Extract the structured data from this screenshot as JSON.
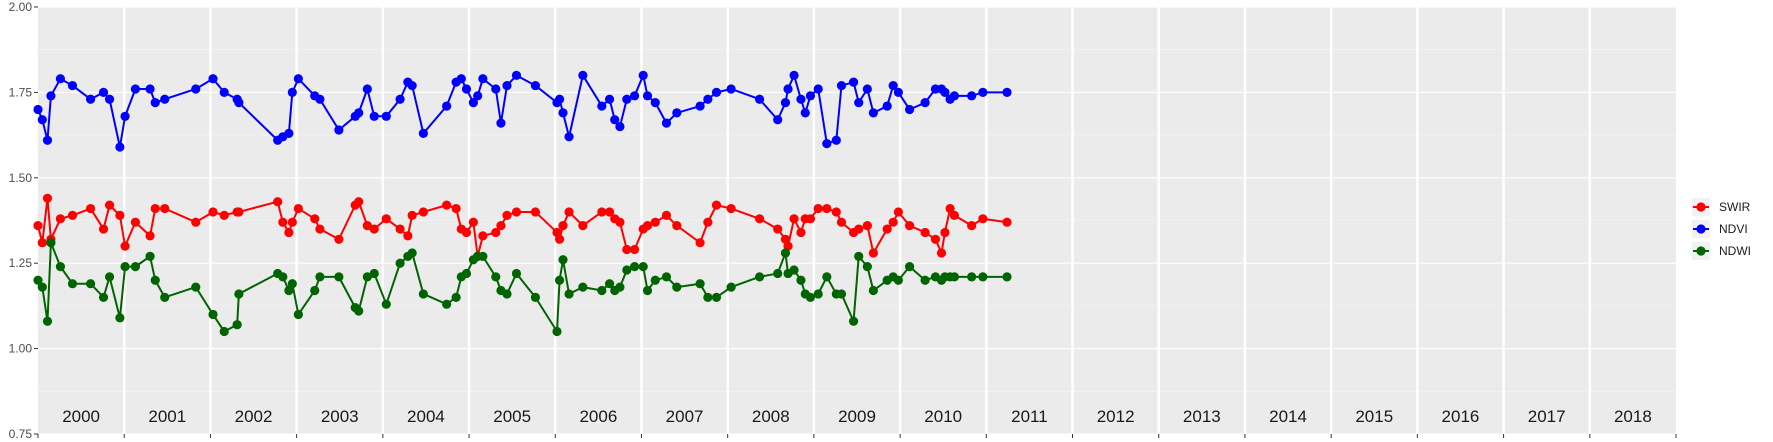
{
  "chart_data": {
    "type": "line",
    "title": "",
    "xlabel": "",
    "ylabel": "",
    "xlim": [
      2000.0,
      2019.0
    ],
    "ylim": [
      0.75,
      2.0
    ],
    "y_ticks": [
      0.75,
      1.0,
      1.25,
      1.5,
      1.75,
      2.0
    ],
    "y_tick_labels": [
      "0.75",
      "1.00",
      "1.25",
      "1.50",
      "1.75",
      "2.00"
    ],
    "year_labels": [
      "2000",
      "2001",
      "2002",
      "2003",
      "2004",
      "2005",
      "2006",
      "2007",
      "2008",
      "2009",
      "2010",
      "2011",
      "2012",
      "2013",
      "2014",
      "2015",
      "2016",
      "2017",
      "2018"
    ],
    "legend_position": "right",
    "series": [
      {
        "name": "SWIR",
        "color": "#ff0000",
        "x": [
          2000.0,
          2000.05,
          2000.11,
          2000.15,
          2000.26,
          2000.4,
          2000.61,
          2000.76,
          2000.83,
          2000.95,
          2001.01,
          2001.13,
          2001.3,
          2001.36,
          2001.47,
          2001.83,
          2002.03,
          2002.16,
          2002.31,
          2002.33,
          2002.78,
          2002.84,
          2002.91,
          2002.95,
          2003.02,
          2003.21,
          2003.27,
          2003.49,
          2003.68,
          2003.72,
          2003.82,
          2003.9,
          2004.04,
          2004.2,
          2004.29,
          2004.34,
          2004.47,
          2004.74,
          2004.85,
          2004.91,
          2004.97,
          2005.05,
          2005.1,
          2005.16,
          2005.31,
          2005.37,
          2005.44,
          2005.55,
          2005.77,
          2006.02,
          2006.05,
          2006.09,
          2006.16,
          2006.32,
          2006.54,
          2006.63,
          2006.69,
          2006.75,
          2006.83,
          2006.92,
          2007.02,
          2007.07,
          2007.16,
          2007.29,
          2007.41,
          2007.68,
          2007.77,
          2007.87,
          2008.04,
          2008.37,
          2008.58,
          2008.67,
          2008.7,
          2008.77,
          2008.85,
          2008.9,
          2008.96,
          2009.05,
          2009.15,
          2009.26,
          2009.32,
          2009.46,
          2009.52,
          2009.62,
          2009.69,
          2009.85,
          2009.92,
          2009.98,
          2010.11,
          2010.29,
          2010.41,
          2010.48,
          2010.52,
          2010.58,
          2010.63,
          2010.83,
          2010.96,
          2011.24
        ],
        "y": [
          1.36,
          1.31,
          1.44,
          1.32,
          1.38,
          1.39,
          1.41,
          1.35,
          1.42,
          1.39,
          1.3,
          1.37,
          1.33,
          1.41,
          1.41,
          1.37,
          1.4,
          1.39,
          1.4,
          1.4,
          1.43,
          1.37,
          1.34,
          1.37,
          1.41,
          1.38,
          1.35,
          1.32,
          1.42,
          1.43,
          1.36,
          1.35,
          1.38,
          1.35,
          1.33,
          1.39,
          1.4,
          1.42,
          1.41,
          1.35,
          1.34,
          1.37,
          1.27,
          1.33,
          1.34,
          1.36,
          1.39,
          1.4,
          1.4,
          1.34,
          1.32,
          1.36,
          1.4,
          1.36,
          1.4,
          1.4,
          1.38,
          1.37,
          1.29,
          1.29,
          1.35,
          1.36,
          1.37,
          1.39,
          1.36,
          1.31,
          1.37,
          1.42,
          1.41,
          1.38,
          1.35,
          1.32,
          1.3,
          1.38,
          1.34,
          1.38,
          1.38,
          1.41,
          1.41,
          1.4,
          1.37,
          1.34,
          1.35,
          1.36,
          1.28,
          1.35,
          1.37,
          1.4,
          1.36,
          1.34,
          1.32,
          1.28,
          1.34,
          1.41,
          1.39,
          1.36,
          1.38,
          1.37
        ]
      },
      {
        "name": "NDVI",
        "color": "#0000ff",
        "x": [
          2000.0,
          2000.05,
          2000.11,
          2000.15,
          2000.26,
          2000.4,
          2000.61,
          2000.76,
          2000.83,
          2000.95,
          2001.01,
          2001.13,
          2001.3,
          2001.36,
          2001.47,
          2001.83,
          2002.03,
          2002.16,
          2002.31,
          2002.33,
          2002.78,
          2002.84,
          2002.91,
          2002.95,
          2003.02,
          2003.21,
          2003.27,
          2003.49,
          2003.68,
          2003.72,
          2003.82,
          2003.9,
          2004.04,
          2004.2,
          2004.29,
          2004.34,
          2004.47,
          2004.74,
          2004.85,
          2004.91,
          2004.97,
          2005.05,
          2005.1,
          2005.16,
          2005.31,
          2005.37,
          2005.44,
          2005.55,
          2005.77,
          2006.02,
          2006.05,
          2006.09,
          2006.16,
          2006.32,
          2006.54,
          2006.63,
          2006.69,
          2006.75,
          2006.83,
          2006.92,
          2007.02,
          2007.07,
          2007.16,
          2007.29,
          2007.41,
          2007.68,
          2007.77,
          2007.87,
          2008.04,
          2008.37,
          2008.58,
          2008.67,
          2008.7,
          2008.77,
          2008.85,
          2008.9,
          2008.96,
          2009.05,
          2009.15,
          2009.26,
          2009.32,
          2009.46,
          2009.52,
          2009.62,
          2009.69,
          2009.85,
          2009.92,
          2009.98,
          2010.11,
          2010.29,
          2010.41,
          2010.48,
          2010.52,
          2010.58,
          2010.63,
          2010.83,
          2010.96,
          2011.24
        ],
        "y": [
          1.7,
          1.67,
          1.61,
          1.74,
          1.79,
          1.77,
          1.73,
          1.75,
          1.73,
          1.59,
          1.68,
          1.76,
          1.76,
          1.72,
          1.73,
          1.76,
          1.79,
          1.75,
          1.73,
          1.72,
          1.61,
          1.62,
          1.63,
          1.75,
          1.79,
          1.74,
          1.73,
          1.64,
          1.68,
          1.69,
          1.76,
          1.68,
          1.68,
          1.73,
          1.78,
          1.77,
          1.63,
          1.71,
          1.78,
          1.79,
          1.76,
          1.72,
          1.74,
          1.79,
          1.76,
          1.66,
          1.77,
          1.8,
          1.77,
          1.72,
          1.73,
          1.69,
          1.62,
          1.8,
          1.71,
          1.73,
          1.67,
          1.65,
          1.73,
          1.74,
          1.8,
          1.74,
          1.72,
          1.66,
          1.69,
          1.71,
          1.73,
          1.75,
          1.76,
          1.73,
          1.67,
          1.72,
          1.76,
          1.8,
          1.73,
          1.69,
          1.74,
          1.76,
          1.6,
          1.61,
          1.77,
          1.78,
          1.72,
          1.76,
          1.69,
          1.71,
          1.77,
          1.75,
          1.7,
          1.72,
          1.76,
          1.76,
          1.75,
          1.73,
          1.74,
          1.74,
          1.75,
          1.75
        ]
      },
      {
        "name": "NDWI",
        "color": "#006400",
        "x": [
          2000.0,
          2000.05,
          2000.11,
          2000.15,
          2000.26,
          2000.4,
          2000.61,
          2000.76,
          2000.83,
          2000.95,
          2001.01,
          2001.13,
          2001.3,
          2001.36,
          2001.47,
          2001.83,
          2002.03,
          2002.16,
          2002.31,
          2002.33,
          2002.78,
          2002.84,
          2002.91,
          2002.95,
          2003.02,
          2003.21,
          2003.27,
          2003.49,
          2003.68,
          2003.72,
          2003.82,
          2003.9,
          2004.04,
          2004.2,
          2004.29,
          2004.34,
          2004.47,
          2004.74,
          2004.85,
          2004.91,
          2004.97,
          2005.05,
          2005.1,
          2005.16,
          2005.31,
          2005.37,
          2005.44,
          2005.55,
          2005.77,
          2006.02,
          2006.05,
          2006.09,
          2006.16,
          2006.32,
          2006.54,
          2006.63,
          2006.69,
          2006.75,
          2006.83,
          2006.92,
          2007.02,
          2007.07,
          2007.16,
          2007.29,
          2007.41,
          2007.68,
          2007.77,
          2007.87,
          2008.04,
          2008.37,
          2008.58,
          2008.67,
          2008.7,
          2008.77,
          2008.85,
          2008.9,
          2008.96,
          2009.05,
          2009.15,
          2009.26,
          2009.32,
          2009.46,
          2009.52,
          2009.62,
          2009.69,
          2009.85,
          2009.92,
          2009.98,
          2010.11,
          2010.29,
          2010.41,
          2010.48,
          2010.52,
          2010.58,
          2010.63,
          2010.83,
          2010.96,
          2011.24
        ],
        "y": [
          1.2,
          1.18,
          1.08,
          1.31,
          1.24,
          1.19,
          1.19,
          1.15,
          1.21,
          1.09,
          1.24,
          1.24,
          1.27,
          1.2,
          1.15,
          1.18,
          1.1,
          1.05,
          1.07,
          1.16,
          1.22,
          1.21,
          1.17,
          1.19,
          1.1,
          1.17,
          1.21,
          1.21,
          1.12,
          1.11,
          1.21,
          1.22,
          1.13,
          1.25,
          1.27,
          1.28,
          1.16,
          1.13,
          1.15,
          1.21,
          1.22,
          1.26,
          1.27,
          1.27,
          1.21,
          1.17,
          1.16,
          1.22,
          1.15,
          1.05,
          1.2,
          1.26,
          1.16,
          1.18,
          1.17,
          1.19,
          1.17,
          1.18,
          1.23,
          1.24,
          1.24,
          1.17,
          1.2,
          1.21,
          1.18,
          1.19,
          1.15,
          1.15,
          1.18,
          1.21,
          1.22,
          1.28,
          1.22,
          1.23,
          1.2,
          1.16,
          1.15,
          1.16,
          1.21,
          1.16,
          1.16,
          1.08,
          1.27,
          1.24,
          1.17,
          1.2,
          1.21,
          1.2,
          1.24,
          1.2,
          1.21,
          1.2,
          1.21,
          1.21,
          1.21,
          1.21,
          1.21,
          1.21
        ]
      }
    ]
  }
}
